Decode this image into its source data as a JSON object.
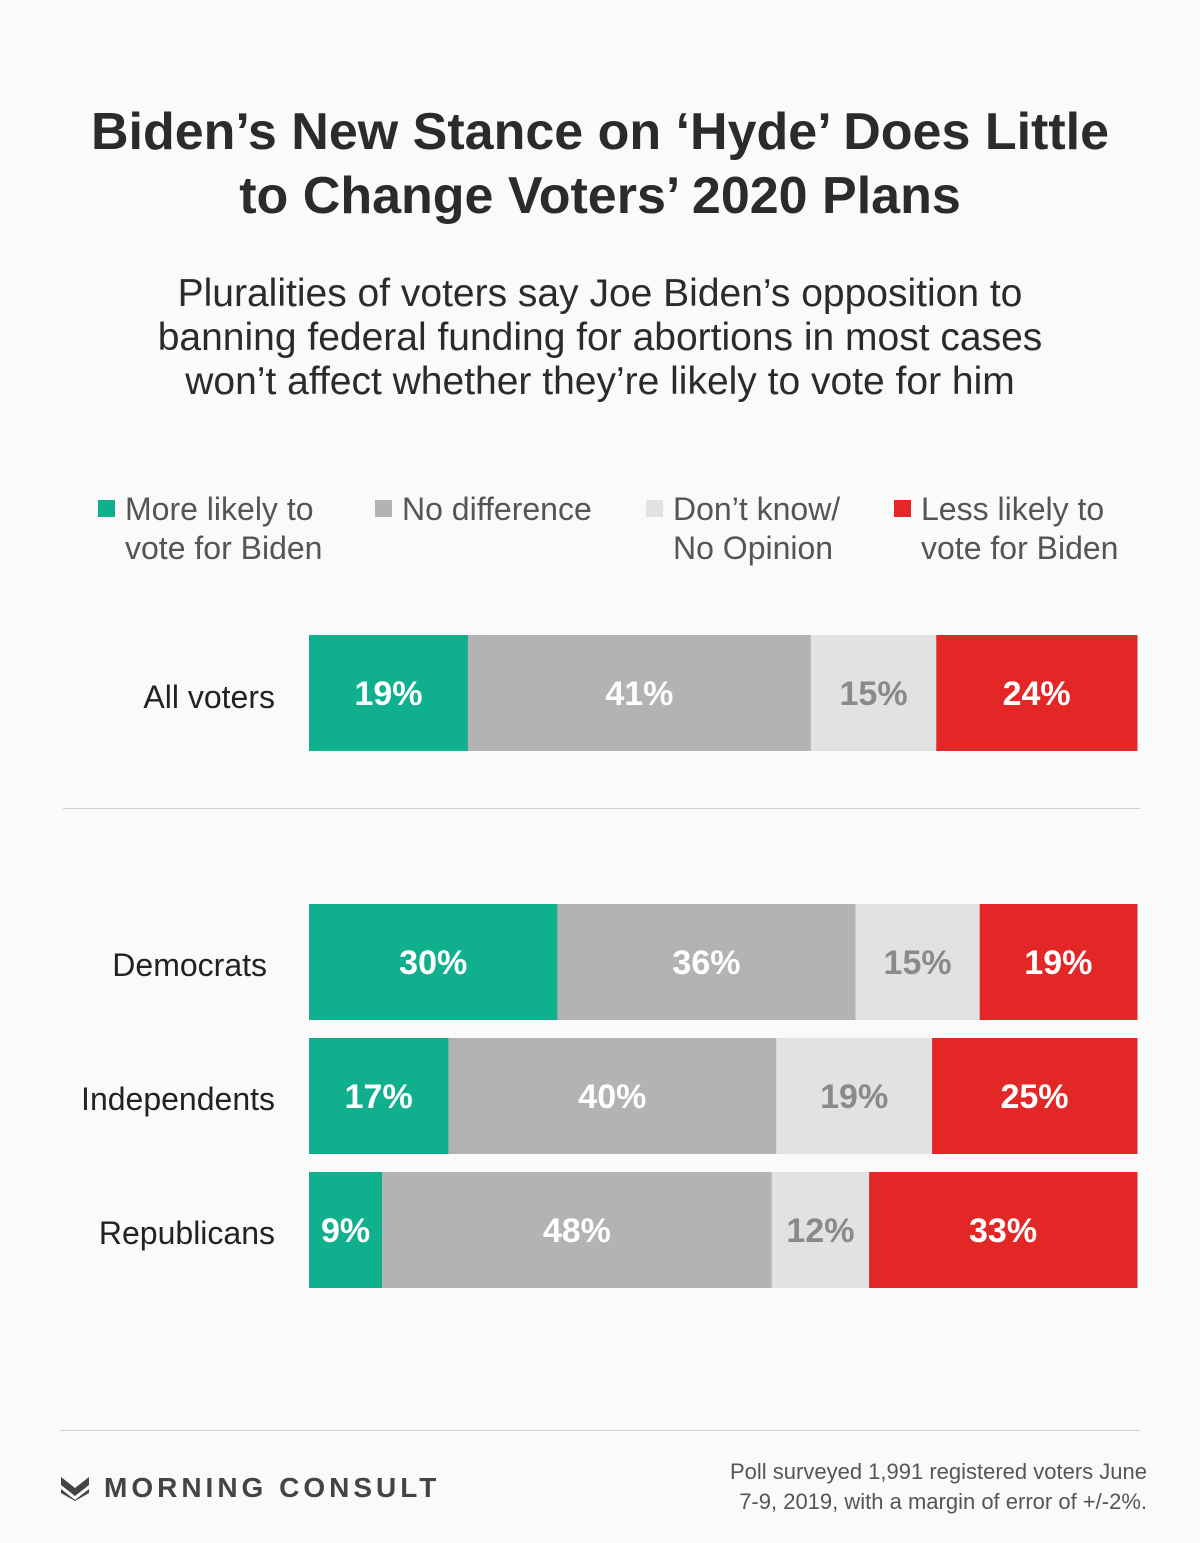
{
  "title_lines": [
    "Biden’s New Stance on ‘Hyde’ Does Little",
    "to Change Voters’ 2020 Plans"
  ],
  "subtitle_lines": [
    "Pluralities of voters say Joe Biden’s opposition to",
    "banning federal funding for abortions in most cases",
    "won’t affect whether they’re likely to vote for him"
  ],
  "legend": [
    {
      "label": "More likely to\nvote for Biden",
      "color": "#10b08f"
    },
    {
      "label": "No difference",
      "color": "#b3b3b3"
    },
    {
      "label": "Don’t know/\nNo Opinion",
      "color": "#e2e2e2"
    },
    {
      "label": "Less likely to\nvote for Biden",
      "color": "#e32726"
    }
  ],
  "chart_data": {
    "type": "bar",
    "orientation": "horizontal",
    "stacked": true,
    "normalized_percent": true,
    "title": "Biden’s New Stance on ‘Hyde’ Does Little to Change Voters’ 2020 Plans",
    "subtitle": "Pluralities of voters say Joe Biden’s opposition to banning federal funding for abortions in most cases won’t affect whether they’re likely to vote for him",
    "categories": [
      "All voters",
      "Democrats",
      "Independents",
      "Republicans"
    ],
    "series": [
      {
        "name": "More likely to vote for Biden",
        "color": "#10b08f",
        "label_color": "#ffffff",
        "values": [
          19,
          30,
          17,
          9
        ]
      },
      {
        "name": "No difference",
        "color": "#b3b3b3",
        "label_color": "#ffffff",
        "values": [
          41,
          36,
          40,
          48
        ]
      },
      {
        "name": "Don’t know/No Opinion",
        "color": "#e2e2e2",
        "label_color": "#8a8a8a",
        "values": [
          15,
          15,
          19,
          12
        ]
      },
      {
        "name": "Less likely to vote for Biden",
        "color": "#e32726",
        "label_color": "#ffffff",
        "values": [
          24,
          19,
          25,
          33
        ]
      }
    ],
    "value_suffix": "%",
    "legend_position": "top",
    "xlabel": "",
    "ylabel": ""
  },
  "footer": {
    "brand": "MORNING CONSULT",
    "note_lines": [
      "Poll surveyed 1,991 registered voters June",
      "7-9, 2019, with a margin of error of +/-2%."
    ]
  }
}
